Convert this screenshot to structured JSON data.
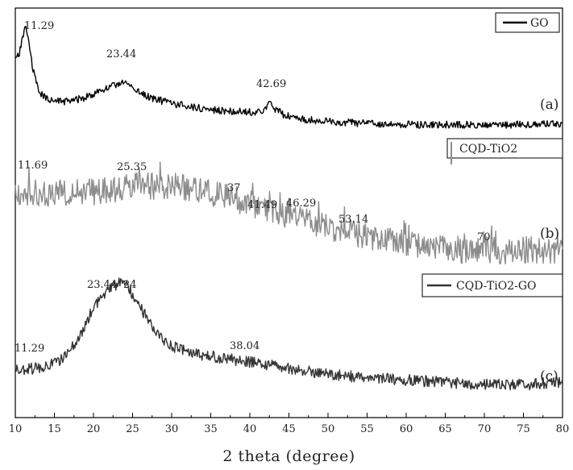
{
  "chart_data": {
    "type": "line",
    "title": "",
    "xlabel": "2 theta (degree)",
    "ylabel": "",
    "xlim": [
      10,
      80
    ],
    "x_ticks": [
      "10",
      "15",
      "20",
      "25",
      "30",
      "35",
      "40",
      "45",
      "50",
      "55",
      "60",
      "65",
      "70",
      "75",
      "80"
    ],
    "y_axis_visible": false,
    "grid": false,
    "legend_placement": "right, one legend box per trace",
    "series": [
      {
        "name": "GO",
        "panel_label": "(a)",
        "color": "#000000",
        "peak_labels": [
          {
            "x": 11.29,
            "text": "11.29"
          },
          {
            "x": 23.44,
            "text": "23.44"
          },
          {
            "x": 42.69,
            "text": "42.69"
          }
        ],
        "profile": [
          [
            10.0,
            0.66
          ],
          [
            10.5,
            0.72
          ],
          [
            11.0,
            0.9
          ],
          [
            11.29,
            1.0
          ],
          [
            11.7,
            0.86
          ],
          [
            12.2,
            0.58
          ],
          [
            12.8,
            0.4
          ],
          [
            13.5,
            0.3
          ],
          [
            15.0,
            0.25
          ],
          [
            17.0,
            0.25
          ],
          [
            19.0,
            0.29
          ],
          [
            21.0,
            0.36
          ],
          [
            22.5,
            0.4
          ],
          [
            23.44,
            0.44
          ],
          [
            24.5,
            0.42
          ],
          [
            26.0,
            0.33
          ],
          [
            28.0,
            0.27
          ],
          [
            30.0,
            0.23
          ],
          [
            33.0,
            0.19
          ],
          [
            36.0,
            0.16
          ],
          [
            39.0,
            0.15
          ],
          [
            41.2,
            0.14
          ],
          [
            42.0,
            0.18
          ],
          [
            42.69,
            0.24
          ],
          [
            43.3,
            0.17
          ],
          [
            44.5,
            0.11
          ],
          [
            47.0,
            0.07
          ],
          [
            50.0,
            0.05
          ],
          [
            55.0,
            0.03
          ],
          [
            60.0,
            0.02
          ],
          [
            65.0,
            0.02
          ],
          [
            70.0,
            0.02
          ],
          [
            75.0,
            0.02
          ],
          [
            80.0,
            0.03
          ]
        ]
      },
      {
        "name": "CQD-TiO2",
        "panel_label": "(b)",
        "color": "#8c8c8c",
        "peak_labels": [
          {
            "x": 11.69,
            "text": "11.69"
          },
          {
            "x": 25.35,
            "text": "25.35"
          },
          {
            "x": 37,
            "text": "37"
          },
          {
            "x": 41.49,
            "text": "41.49"
          },
          {
            "x": 46.29,
            "text": "46.29"
          },
          {
            "x": 53.14,
            "text": "53.14"
          },
          {
            "x": 70,
            "text": "70"
          }
        ],
        "profile": [
          [
            10.0,
            0.6
          ],
          [
            15.0,
            0.58
          ],
          [
            20.0,
            0.6
          ],
          [
            25.0,
            0.65
          ],
          [
            30.0,
            0.66
          ],
          [
            35.0,
            0.6
          ],
          [
            40.0,
            0.48
          ],
          [
            45.0,
            0.38
          ],
          [
            50.0,
            0.27
          ],
          [
            55.0,
            0.17
          ],
          [
            60.0,
            0.1
          ],
          [
            65.0,
            0.05
          ],
          [
            70.0,
            0.04
          ],
          [
            75.0,
            0.04
          ],
          [
            80.0,
            0.05
          ]
        ]
      },
      {
        "name": "CQD-TiO2-GO",
        "panel_label": "(c)",
        "color": "#333333",
        "peak_labels": [
          {
            "x": 11.29,
            "text": "11.29"
          },
          {
            "x": 23.44,
            "text": "23.44"
          },
          {
            "x": 24,
            "text": "24"
          },
          {
            "x": 38.04,
            "text": "38.04"
          }
        ],
        "profile": [
          [
            10.0,
            0.12
          ],
          [
            13.0,
            0.15
          ],
          [
            16.0,
            0.22
          ],
          [
            18.0,
            0.4
          ],
          [
            20.0,
            0.68
          ],
          [
            22.0,
            0.85
          ],
          [
            23.44,
            0.9
          ],
          [
            24.5,
            0.86
          ],
          [
            26.0,
            0.68
          ],
          [
            28.0,
            0.46
          ],
          [
            30.0,
            0.34
          ],
          [
            33.0,
            0.27
          ],
          [
            36.0,
            0.24
          ],
          [
            40.0,
            0.2
          ],
          [
            45.0,
            0.14
          ],
          [
            50.0,
            0.09
          ],
          [
            55.0,
            0.06
          ],
          [
            60.0,
            0.04
          ],
          [
            65.0,
            0.02
          ],
          [
            70.0,
            0.0
          ],
          [
            75.0,
            0.0
          ],
          [
            80.0,
            0.02
          ]
        ]
      }
    ]
  }
}
